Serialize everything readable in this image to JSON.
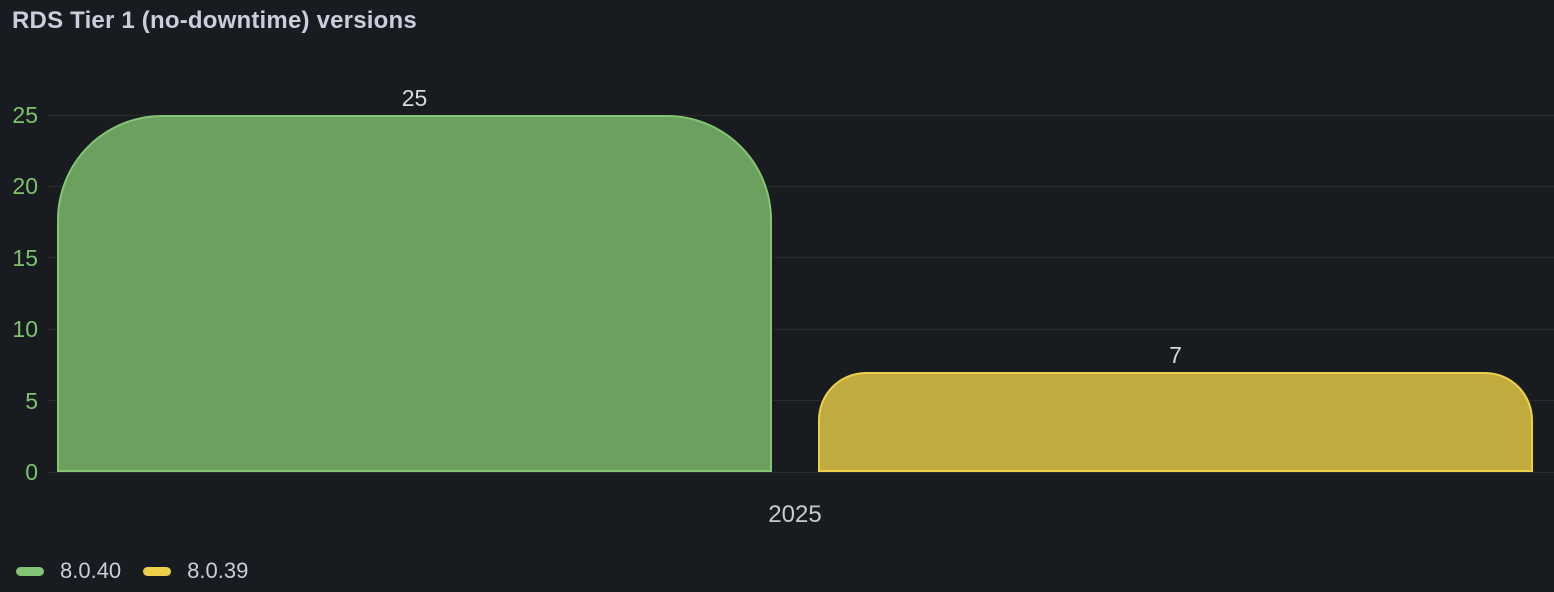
{
  "panel": {
    "background": "#181b1f",
    "title_color": "#ccccdc",
    "text_color": "#c9cad0",
    "gridline_color": "rgba(255,255,255,0.08)"
  },
  "chart_data": {
    "type": "bar",
    "title": "RDS Tier 1 (no-downtime) versions",
    "categories": [
      "2025"
    ],
    "series": [
      {
        "name": "8.0.40",
        "values": [
          25
        ],
        "color": "#83c573",
        "fill": "#6ba05f"
      },
      {
        "name": "8.0.39",
        "values": [
          7
        ],
        "color": "#ecd04c",
        "fill": "#c2ab3e"
      }
    ],
    "ylim": [
      0,
      25
    ],
    "yticks": [
      0,
      5,
      10,
      15,
      20,
      25
    ],
    "grid": true,
    "legend_position": "bottom",
    "axis_tick_color": "#7cc36d",
    "value_label_color": "#d8d9dd",
    "xlabel": ""
  }
}
